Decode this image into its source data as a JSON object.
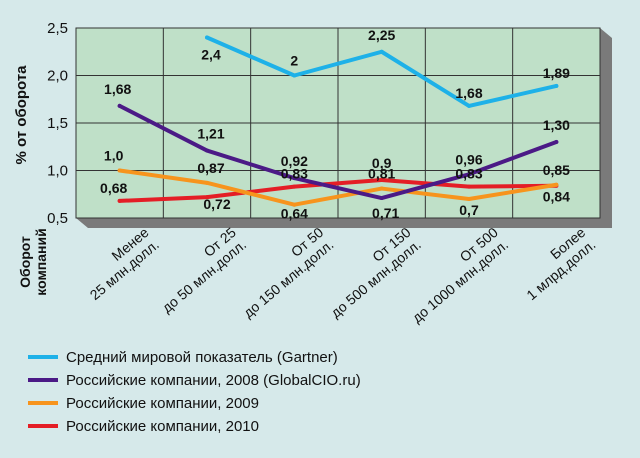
{
  "chart_data": {
    "type": "line",
    "ylabel": "% от оборота",
    "side_label": [
      "Оборот",
      "компаний"
    ],
    "ylim": [
      0.5,
      2.5
    ],
    "y_ticks": [
      "0,5",
      "1,0",
      "1,5",
      "2,0",
      "2,5"
    ],
    "grid": true,
    "legend_position": "bottom",
    "categories": [
      [
        "Менее",
        "25 млн.долл."
      ],
      [
        "От 25",
        "до 50 млн.долл."
      ],
      [
        "От 50",
        "до 150 млн.долл."
      ],
      [
        "От 150",
        "до 500 млн.долл."
      ],
      [
        "От 500",
        "до 1000 млн.долл."
      ],
      [
        "Более",
        "1 млрд.долл."
      ]
    ],
    "series": [
      {
        "name": "Средний мировой показатель (Gartner)",
        "color": "#1eb1e8",
        "values": [
          null,
          2.4,
          2.0,
          2.25,
          1.68,
          1.89
        ],
        "labels": [
          "",
          "2,4",
          "2",
          "2,25",
          "1,68",
          "1,89"
        ]
      },
      {
        "name": "Российские компании, 2008 (GlobalCIO.ru)",
        "color": "#4b1a86",
        "values": [
          1.68,
          1.21,
          0.92,
          0.71,
          0.96,
          1.3
        ],
        "labels": [
          "1,68",
          "1,21",
          "0,92",
          "0,71",
          "0,96",
          "1,30"
        ]
      },
      {
        "name": "Российские компании, 2009",
        "color": "#f7941d",
        "values": [
          1.0,
          0.87,
          0.64,
          0.81,
          0.7,
          0.85
        ],
        "labels": [
          "1,0",
          "0,87",
          "0,64",
          "0,81",
          "0,7",
          "0,85"
        ]
      },
      {
        "name": "Российские компании, 2010",
        "color": "#e41e26",
        "values": [
          0.68,
          0.72,
          0.83,
          0.9,
          0.83,
          0.84
        ],
        "labels": [
          "0,68",
          "0,72",
          "0,83",
          "0,9",
          "0,83",
          "0,84"
        ]
      }
    ]
  },
  "colors": {
    "plot_bg": "#bfe0c8",
    "page_bg": "#d6e9ea",
    "grid": "#333333"
  }
}
